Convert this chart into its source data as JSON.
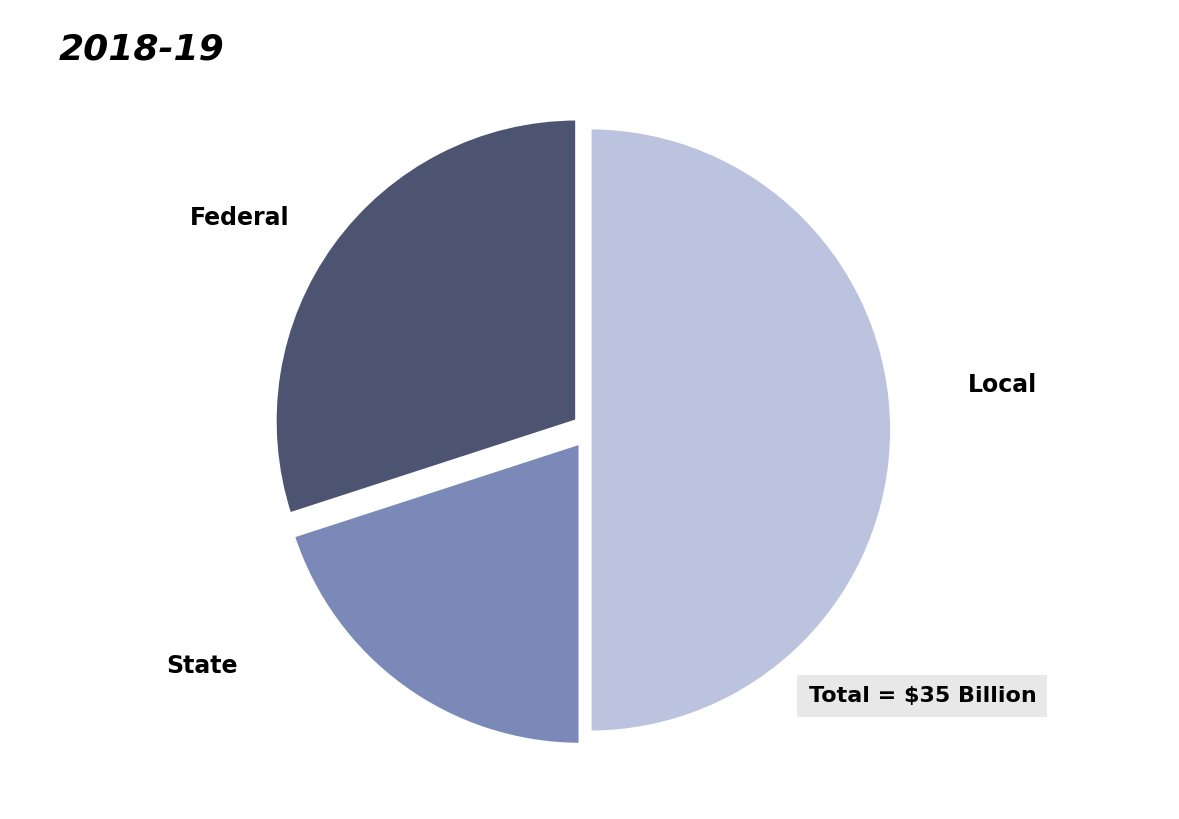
{
  "title": "2018-19",
  "slices": [
    {
      "label": "Local",
      "value": 50,
      "color": "#bcc3de",
      "explode": 0.0
    },
    {
      "label": "Federal",
      "value": 20,
      "color": "#7b89b8",
      "explode": 0.05
    },
    {
      "label": "State",
      "value": 30,
      "color": "#4d5472",
      "explode": 0.05
    }
  ],
  "annotation": "Total = $35 Billion",
  "annotation_box_color": "#e8e8e8",
  "startangle": 90,
  "wedge_linewidth": 3,
  "wedge_edgecolor": "#ffffff",
  "label_fontsize": 17,
  "label_fontweight": "bold",
  "title_fontsize": 26,
  "title_fontstyle": "italic",
  "title_fontweight": "bold"
}
